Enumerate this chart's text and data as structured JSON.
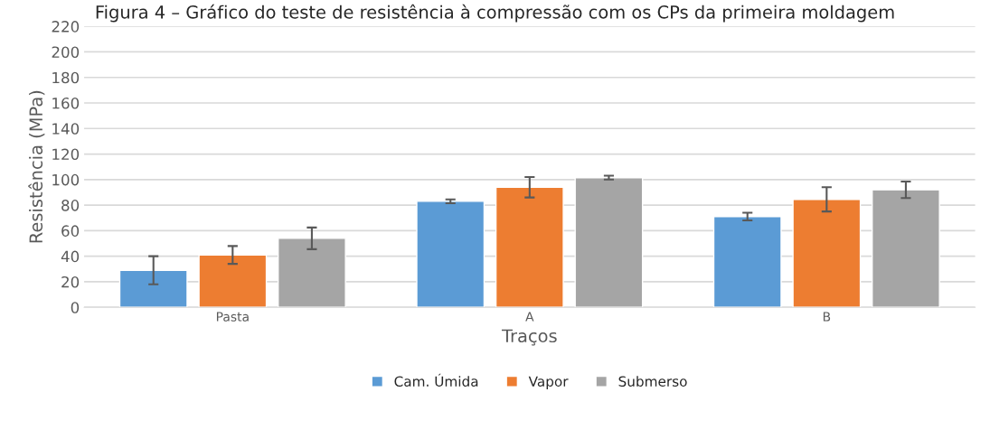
{
  "chart_data": {
    "type": "bar",
    "title": "Figura 4 – Gráfico do teste de resistência à compressão com os CPs da primeira moldagem",
    "xlabel": "Traços",
    "ylabel": "Resistência (MPa)",
    "categories": [
      "Pasta",
      "A",
      "B"
    ],
    "series": [
      {
        "name": "Cam. Úmida",
        "color": "#5b9bd5",
        "values": [
          29,
          83,
          71
        ],
        "errors": [
          11,
          1.5,
          3
        ]
      },
      {
        "name": "Vapor",
        "color": "#ed7d31",
        "values": [
          41,
          94,
          84.5
        ],
        "errors": [
          7,
          8,
          9.5
        ]
      },
      {
        "name": "Submerso",
        "color": "#a5a5a5",
        "values": [
          54,
          101.5,
          92
        ],
        "errors": [
          8.5,
          1.5,
          6.5
        ]
      }
    ],
    "ylim": [
      0,
      220
    ],
    "yticks": [
      0,
      20,
      40,
      60,
      80,
      100,
      120,
      140,
      160,
      180,
      200,
      220
    ],
    "grid": "y",
    "legend": "bottom"
  }
}
